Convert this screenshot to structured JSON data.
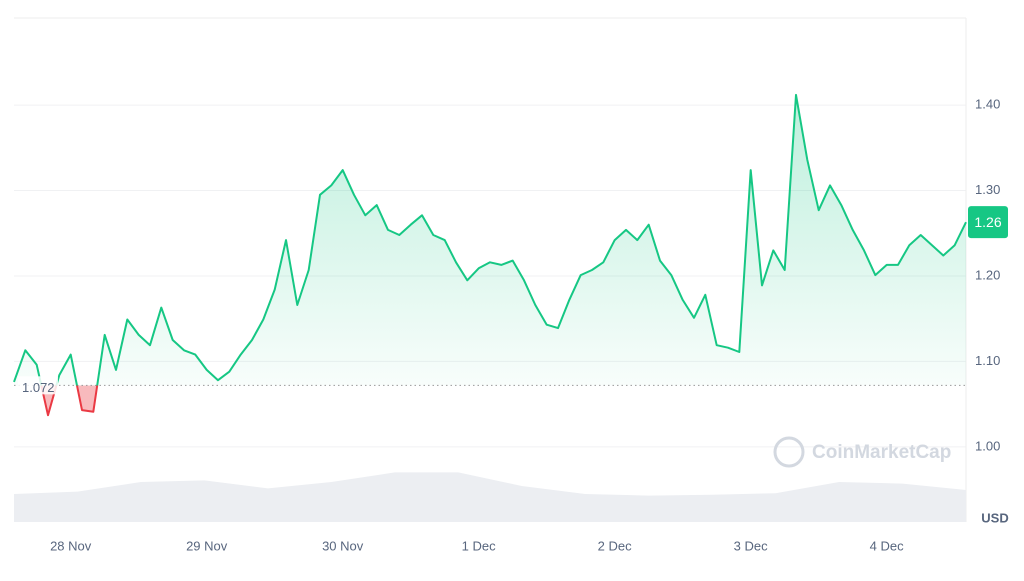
{
  "chart_data": {
    "type": "line",
    "series": [
      {
        "color": "#16c784",
        "below_color": "#ea3943",
        "values": [
          1.076,
          1.113,
          1.096,
          1.037,
          1.084,
          1.108,
          1.043,
          1.041,
          1.131,
          1.09,
          1.149,
          1.131,
          1.119,
          1.163,
          1.125,
          1.113,
          1.108,
          1.09,
          1.078,
          1.088,
          1.108,
          1.125,
          1.149,
          1.184,
          1.242,
          1.166,
          1.207,
          1.295,
          1.306,
          1.324,
          1.295,
          1.271,
          1.283,
          1.254,
          1.248,
          1.26,
          1.271,
          1.248,
          1.242,
          1.216,
          1.195,
          1.209,
          1.216,
          1.213,
          1.218,
          1.195,
          1.166,
          1.143,
          1.139,
          1.172,
          1.201,
          1.207,
          1.216,
          1.242,
          1.254,
          1.242,
          1.26,
          1.218,
          1.201,
          1.172,
          1.151,
          1.178,
          1.119,
          1.116,
          1.111,
          1.324,
          1.189,
          1.23,
          1.207,
          1.412,
          1.336,
          1.277,
          1.306,
          1.283,
          1.254,
          1.23,
          1.201,
          1.213,
          1.213,
          1.236,
          1.248,
          1.236,
          1.224,
          1.236,
          1.263
        ]
      }
    ],
    "categories": [
      null,
      null,
      null,
      null,
      null,
      "28 Nov",
      null,
      null,
      null,
      null,
      null,
      null,
      null,
      null,
      null,
      null,
      null,
      "29 Nov",
      null,
      null,
      null,
      null,
      null,
      null,
      null,
      null,
      null,
      null,
      null,
      "30 Nov",
      null,
      null,
      null,
      null,
      null,
      null,
      null,
      null,
      null,
      null,
      null,
      "1 Dec",
      null,
      null,
      null,
      null,
      null,
      null,
      null,
      null,
      null,
      null,
      null,
      "2 Dec",
      null,
      null,
      null,
      null,
      null,
      null,
      null,
      null,
      null,
      null,
      null,
      "3 Dec",
      null,
      null,
      null,
      null,
      null,
      null,
      null,
      null,
      null,
      null,
      null,
      "4 Dec",
      null,
      null,
      null,
      null,
      null,
      null,
      null
    ],
    "baseline": 1.072,
    "current_price": {
      "value": 1.263,
      "label": "1.26"
    },
    "ylim": [
      0.912,
      1.502
    ],
    "yticks": [
      {
        "value": 1,
        "label": "1.00"
      },
      {
        "value": 1.1,
        "label": "1.10"
      },
      {
        "value": 1.2,
        "label": "1.20"
      },
      {
        "value": 1.3,
        "label": "1.30"
      },
      {
        "value": 1.4,
        "label": "1.40"
      }
    ],
    "grid": true,
    "y_unit": "USD",
    "watermark": "CoinMarketCap",
    "volume": {
      "color": "#eceef2",
      "values": [
        35,
        38,
        50,
        52,
        42,
        50,
        62,
        62,
        45,
        35,
        33,
        34,
        36,
        50,
        48,
        40
      ],
      "vlim": [
        0,
        100
      ]
    }
  }
}
